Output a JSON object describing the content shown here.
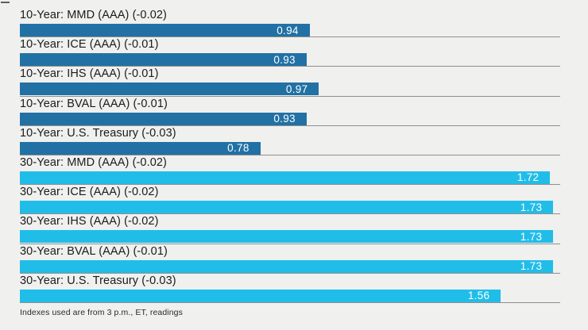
{
  "chart_data": {
    "type": "bar",
    "orientation": "horizontal",
    "title": "",
    "xlabel": "",
    "ylabel": "",
    "xlim": [
      0,
      1.7525
    ],
    "grid": "row-separator-lines",
    "legend": "none",
    "value_label_position": "inside-right",
    "group_colors": {
      "10-year": "#2171a5",
      "30-year": "#21bde9"
    },
    "bars": [
      {
        "label": "10-Year: MMD (AAA) (-0.02)",
        "value": 0.94,
        "display_value": "0.94",
        "group": "10-year"
      },
      {
        "label": "10-Year: ICE (AAA) (-0.01)",
        "value": 0.93,
        "display_value": "0.93",
        "group": "10-year"
      },
      {
        "label": "10-Year: IHS (AAA) (-0.01)",
        "value": 0.97,
        "display_value": "0.97",
        "group": "10-year"
      },
      {
        "label": "10-Year: BVAL (AAA) (-0.01)",
        "value": 0.93,
        "display_value": "0.93",
        "group": "10-year"
      },
      {
        "label": "10-Year: U.S. Treasury (-0.03)",
        "value": 0.78,
        "display_value": "0.78",
        "group": "10-year"
      },
      {
        "label": "30-Year: MMD (AAA) (-0.02)",
        "value": 1.72,
        "display_value": "1.72",
        "group": "30-year"
      },
      {
        "label": "30-Year: ICE (AAA) (-0.02)",
        "value": 1.73,
        "display_value": "1.73",
        "group": "30-year"
      },
      {
        "label": "30-Year: IHS (AAA) (-0.02)",
        "value": 1.73,
        "display_value": "1.73",
        "group": "30-year"
      },
      {
        "label": "30-Year: BVAL (AAA) (-0.01)",
        "value": 1.73,
        "display_value": "1.73",
        "group": "30-year"
      },
      {
        "label": "30-Year: U.S. Treasury (-0.03)",
        "value": 1.56,
        "display_value": "1.56",
        "group": "30-year"
      }
    ]
  },
  "footer": {
    "note": "Indexes used are from 3 p.m., ET, readings"
  },
  "colors": {
    "background": "#f0f0ef",
    "separator": "#8f8f8f",
    "label_text": "#1b1b1b",
    "value_text": "#ffffff",
    "bar_10_year": "#2171a5",
    "bar_30_year": "#21bde9"
  }
}
